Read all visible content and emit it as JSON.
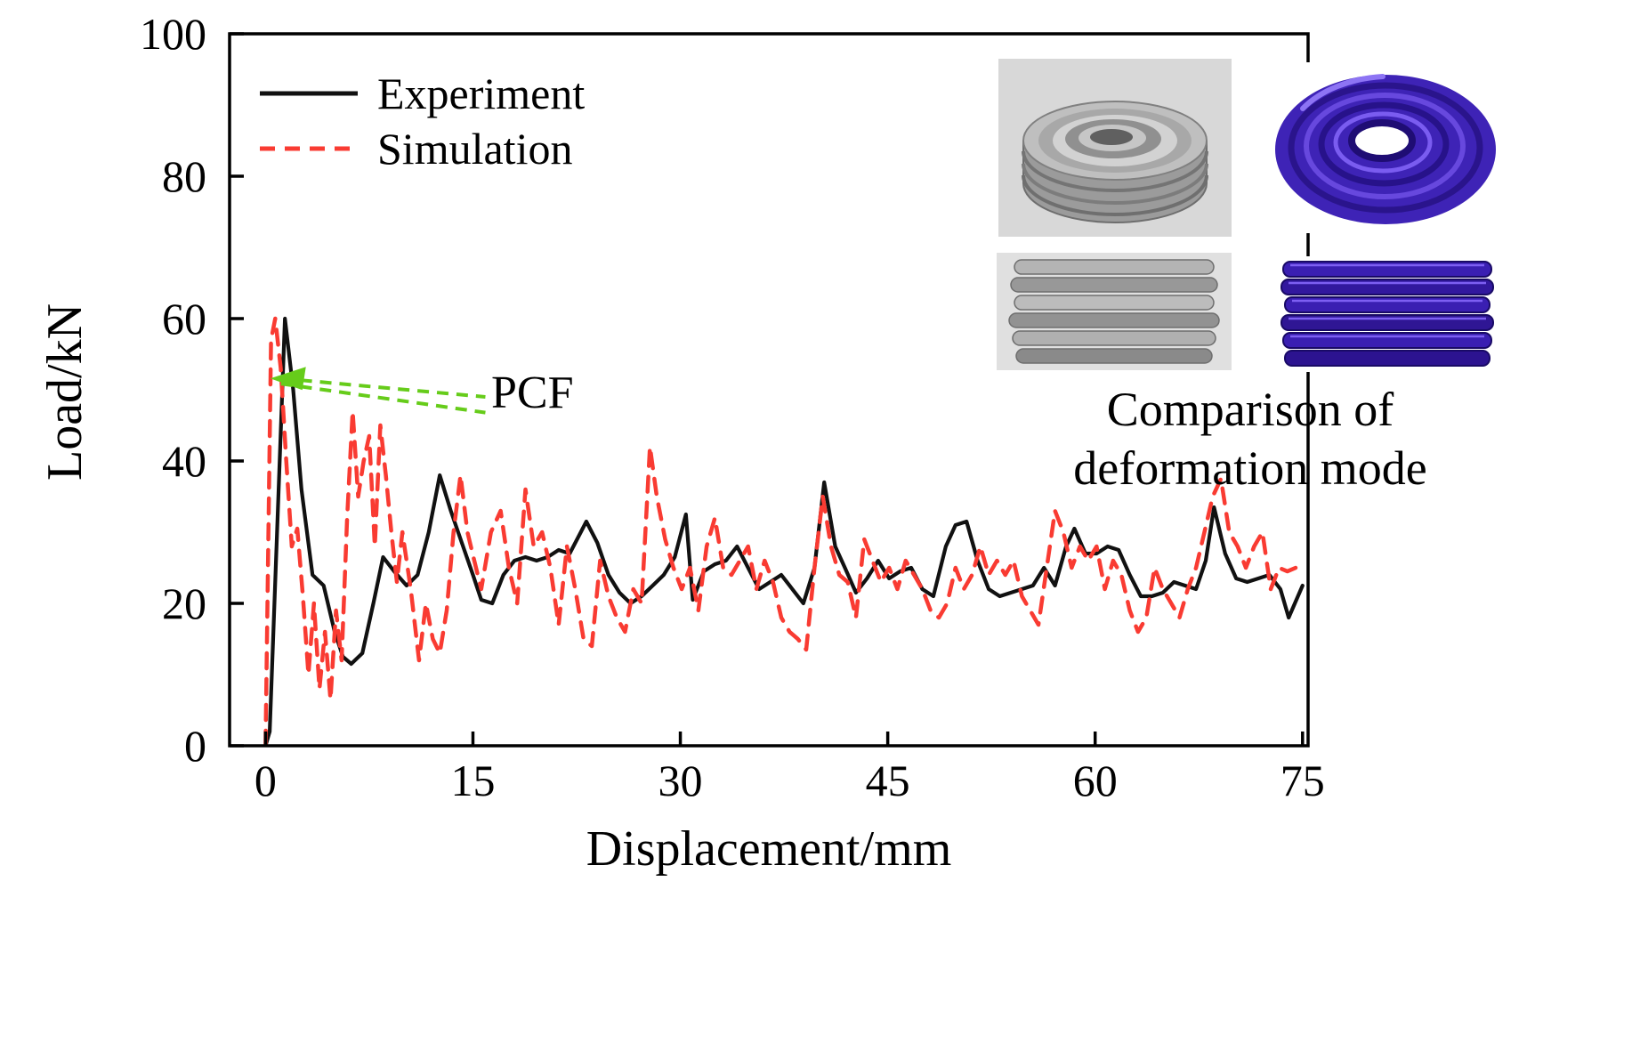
{
  "colors": {
    "experiment": "#111111",
    "simulation": "#f93b32",
    "pcf_arrow": "#66cc1a",
    "axis": "#000000"
  },
  "annotation": {
    "pcf_label": "PCF",
    "tip": [
      0.6,
      51.6
    ],
    "tails": [
      [
        15.9,
        49.0
      ],
      [
        15.9,
        46.8
      ]
    ]
  },
  "inset": {
    "caption_line1": "Comparison of",
    "caption_line2": "deformation mode",
    "tiles": [
      {
        "name": "experiment-top-view-photo",
        "kind": "photograph"
      },
      {
        "name": "simulation-top-view-render",
        "kind": "render"
      },
      {
        "name": "experiment-side-view-photo",
        "kind": "photograph"
      },
      {
        "name": "simulation-side-view-render",
        "kind": "render"
      }
    ]
  },
  "chart_data": {
    "type": "line",
    "title": "",
    "xlabel": "Displacement/mm",
    "ylabel": "Load/kN",
    "xlim": [
      -2.6,
      75.4
    ],
    "ylim": [
      0,
      100
    ],
    "x_ticks": [
      0,
      15,
      30,
      45,
      60,
      75
    ],
    "y_ticks": [
      0,
      20,
      40,
      60,
      80,
      100
    ],
    "grid": false,
    "legend_position": "top-left",
    "series": [
      {
        "name": "Experiment",
        "color": "#111111",
        "style": "solid",
        "points": [
          [
            0,
            0
          ],
          [
            0.3,
            2
          ],
          [
            1.4,
            60
          ],
          [
            2.0,
            50
          ],
          [
            2.6,
            36
          ],
          [
            3.4,
            24
          ],
          [
            4.2,
            22.5
          ],
          [
            5.0,
            16
          ],
          [
            5.6,
            12.5
          ],
          [
            6.2,
            11.5
          ],
          [
            7.0,
            13
          ],
          [
            7.8,
            20
          ],
          [
            8.5,
            26.5
          ],
          [
            9.3,
            24.5
          ],
          [
            10.2,
            22.5
          ],
          [
            11.0,
            24
          ],
          [
            11.8,
            30
          ],
          [
            12.6,
            38
          ],
          [
            13.4,
            33
          ],
          [
            14.2,
            28.5
          ],
          [
            15.0,
            24
          ],
          [
            15.6,
            20.5
          ],
          [
            16.4,
            20
          ],
          [
            17.2,
            24
          ],
          [
            18.0,
            26
          ],
          [
            18.8,
            26.5
          ],
          [
            19.6,
            26
          ],
          [
            20.4,
            26.5
          ],
          [
            21.2,
            27.5
          ],
          [
            22.0,
            27
          ],
          [
            22.8,
            30
          ],
          [
            23.2,
            31.5
          ],
          [
            24.0,
            28.5
          ],
          [
            24.8,
            24
          ],
          [
            25.6,
            21.5
          ],
          [
            26.4,
            20
          ],
          [
            27.2,
            21
          ],
          [
            28.0,
            22.5
          ],
          [
            28.8,
            24
          ],
          [
            29.6,
            26.5
          ],
          [
            30.4,
            32.5
          ],
          [
            30.9,
            20.5
          ],
          [
            31.7,
            24.5
          ],
          [
            32.5,
            25.5
          ],
          [
            33.3,
            26
          ],
          [
            34.1,
            28
          ],
          [
            34.9,
            25
          ],
          [
            35.7,
            22
          ],
          [
            36.5,
            23
          ],
          [
            37.3,
            24
          ],
          [
            38.1,
            22
          ],
          [
            38.9,
            20
          ],
          [
            39.7,
            25
          ],
          [
            40.4,
            37
          ],
          [
            41.2,
            28
          ],
          [
            41.9,
            25
          ],
          [
            42.7,
            21.5
          ],
          [
            43.5,
            23.5
          ],
          [
            44.3,
            26
          ],
          [
            45.1,
            23.5
          ],
          [
            45.9,
            24.5
          ],
          [
            46.7,
            25
          ],
          [
            47.5,
            22
          ],
          [
            48.3,
            21
          ],
          [
            49.2,
            28
          ],
          [
            49.9,
            31
          ],
          [
            50.7,
            31.5
          ],
          [
            51.5,
            26
          ],
          [
            52.3,
            22
          ],
          [
            53.1,
            21
          ],
          [
            53.9,
            21.5
          ],
          [
            54.7,
            22
          ],
          [
            55.5,
            22.5
          ],
          [
            56.3,
            25
          ],
          [
            57.1,
            22.5
          ],
          [
            57.9,
            28
          ],
          [
            58.5,
            30.5
          ],
          [
            59.3,
            27
          ],
          [
            60.1,
            27
          ],
          [
            60.9,
            28
          ],
          [
            61.7,
            27.5
          ],
          [
            62.5,
            24
          ],
          [
            63.3,
            21
          ],
          [
            64.1,
            21
          ],
          [
            64.9,
            21.5
          ],
          [
            65.7,
            23
          ],
          [
            66.5,
            22.5
          ],
          [
            67.3,
            22
          ],
          [
            68.0,
            26
          ],
          [
            68.6,
            33.5
          ],
          [
            69.4,
            27
          ],
          [
            70.2,
            23.5
          ],
          [
            71.0,
            23
          ],
          [
            71.8,
            23.5
          ],
          [
            72.6,
            24
          ],
          [
            73.4,
            22
          ],
          [
            74.0,
            18
          ],
          [
            75,
            22.5
          ]
        ]
      },
      {
        "name": "Simulation",
        "color": "#f93b32",
        "style": "dashed",
        "points": [
          [
            0,
            0
          ],
          [
            0.4,
            57
          ],
          [
            0.7,
            60
          ],
          [
            1.1,
            53
          ],
          [
            1.5,
            40
          ],
          [
            1.9,
            28
          ],
          [
            2.3,
            30.5
          ],
          [
            2.7,
            21
          ],
          [
            3.1,
            10
          ],
          [
            3.5,
            20
          ],
          [
            3.9,
            8
          ],
          [
            4.3,
            16
          ],
          [
            4.7,
            6.5
          ],
          [
            5.1,
            19
          ],
          [
            5.5,
            12
          ],
          [
            5.9,
            32
          ],
          [
            6.3,
            47
          ],
          [
            6.7,
            35
          ],
          [
            7.1,
            40
          ],
          [
            7.5,
            43.5
          ],
          [
            7.9,
            28
          ],
          [
            8.3,
            45
          ],
          [
            8.7,
            38
          ],
          [
            9.1,
            30
          ],
          [
            9.5,
            23
          ],
          [
            9.9,
            30
          ],
          [
            10.5,
            22
          ],
          [
            11.1,
            12
          ],
          [
            11.6,
            20
          ],
          [
            12.1,
            15
          ],
          [
            12.6,
            13
          ],
          [
            13.1,
            19
          ],
          [
            13.6,
            30
          ],
          [
            14.1,
            38
          ],
          [
            14.6,
            30
          ],
          [
            15.1,
            26
          ],
          [
            15.6,
            22
          ],
          [
            16.3,
            30
          ],
          [
            17.0,
            33
          ],
          [
            17.6,
            25
          ],
          [
            18.2,
            20
          ],
          [
            18.8,
            36
          ],
          [
            19.4,
            28
          ],
          [
            20.0,
            30
          ],
          [
            20.6,
            25
          ],
          [
            21.2,
            17
          ],
          [
            21.8,
            28
          ],
          [
            22.4,
            22
          ],
          [
            23.0,
            15
          ],
          [
            23.6,
            14
          ],
          [
            24.2,
            26
          ],
          [
            24.8,
            21
          ],
          [
            25.4,
            18
          ],
          [
            26.0,
            16
          ],
          [
            26.6,
            22
          ],
          [
            27.2,
            20
          ],
          [
            27.8,
            42
          ],
          [
            28.3,
            35
          ],
          [
            28.9,
            29
          ],
          [
            29.5,
            25
          ],
          [
            30.1,
            22
          ],
          [
            30.7,
            25
          ],
          [
            31.3,
            19
          ],
          [
            31.9,
            28
          ],
          [
            32.5,
            32
          ],
          [
            33.1,
            25
          ],
          [
            33.7,
            24
          ],
          [
            34.3,
            26
          ],
          [
            34.9,
            28
          ],
          [
            35.5,
            22
          ],
          [
            36.1,
            26
          ],
          [
            36.7,
            23
          ],
          [
            37.3,
            18
          ],
          [
            37.9,
            16
          ],
          [
            38.5,
            15
          ],
          [
            39.1,
            13.5
          ],
          [
            39.7,
            25
          ],
          [
            40.3,
            35
          ],
          [
            40.9,
            28
          ],
          [
            41.5,
            24
          ],
          [
            42.1,
            23
          ],
          [
            42.7,
            18
          ],
          [
            43.3,
            29
          ],
          [
            43.9,
            26
          ],
          [
            44.5,
            23
          ],
          [
            45.1,
            25
          ],
          [
            45.7,
            22
          ],
          [
            46.3,
            26
          ],
          [
            46.9,
            24
          ],
          [
            47.5,
            22
          ],
          [
            48.1,
            19
          ],
          [
            48.7,
            18
          ],
          [
            49.3,
            20
          ],
          [
            49.9,
            25
          ],
          [
            50.5,
            22
          ],
          [
            51.1,
            24
          ],
          [
            51.7,
            28
          ],
          [
            52.3,
            24
          ],
          [
            52.9,
            26
          ],
          [
            53.5,
            24
          ],
          [
            54.1,
            26
          ],
          [
            54.7,
            21
          ],
          [
            55.3,
            19
          ],
          [
            55.9,
            17
          ],
          [
            56.5,
            25
          ],
          [
            57.1,
            33
          ],
          [
            57.7,
            30
          ],
          [
            58.3,
            25
          ],
          [
            58.9,
            28
          ],
          [
            59.5,
            26
          ],
          [
            60.1,
            28
          ],
          [
            60.7,
            22
          ],
          [
            61.3,
            26
          ],
          [
            61.9,
            24
          ],
          [
            62.5,
            19
          ],
          [
            63.1,
            16
          ],
          [
            63.7,
            18
          ],
          [
            64.3,
            25
          ],
          [
            64.9,
            22
          ],
          [
            65.5,
            20
          ],
          [
            66.1,
            18
          ],
          [
            66.7,
            22
          ],
          [
            67.3,
            25
          ],
          [
            67.9,
            30
          ],
          [
            68.5,
            35
          ],
          [
            69.1,
            37.5
          ],
          [
            69.7,
            30
          ],
          [
            70.3,
            28
          ],
          [
            70.9,
            25
          ],
          [
            71.5,
            28
          ],
          [
            72.1,
            30
          ],
          [
            72.7,
            22
          ],
          [
            73.3,
            25
          ],
          [
            73.9,
            24.5
          ],
          [
            74.5,
            25
          ],
          [
            75,
            24
          ]
        ]
      }
    ]
  }
}
